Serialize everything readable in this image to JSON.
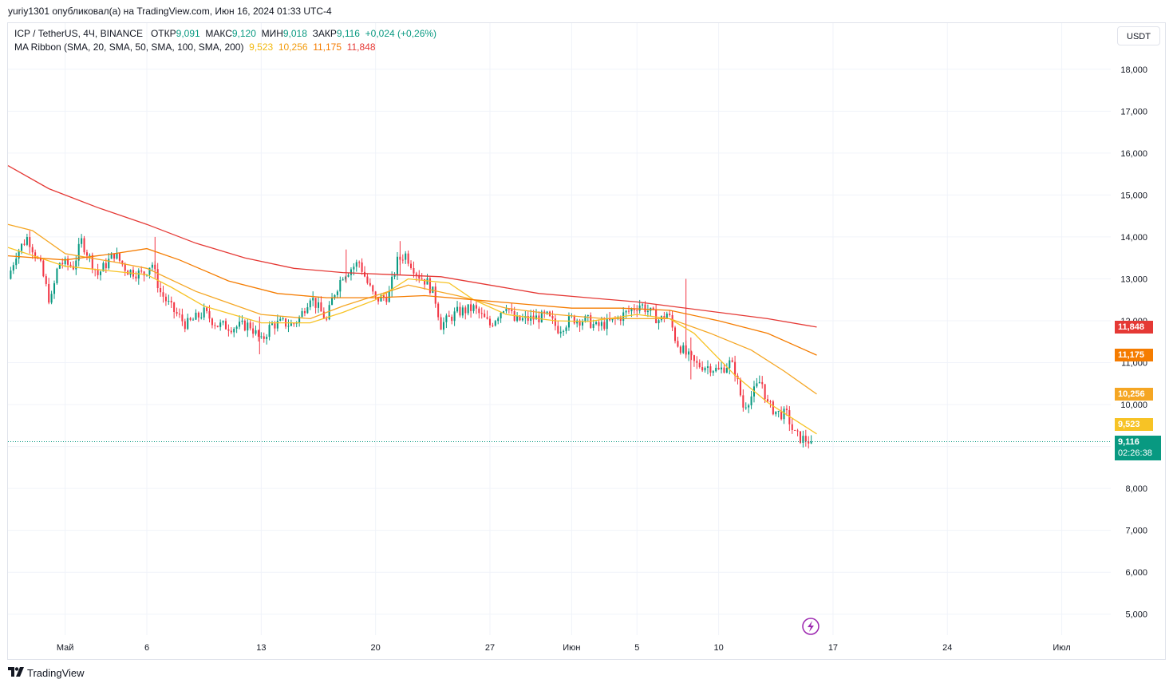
{
  "header": {
    "publisher": "yuriy1301 опубликовал(а) на TradingView.com, Июн 16, 2024 01:33 UTC-4"
  },
  "legend": {
    "symbol": "ICP / TetherUS, 4Ч, BINANCE",
    "open_label": "ОТКР",
    "open": "9,091",
    "high_label": "МАКС",
    "high": "9,120",
    "low_label": "МИН",
    "low": "9,018",
    "close_label": "ЗАКР",
    "close": "9,116",
    "change": "+0,024 (+0,26%)",
    "indicator": "MA Ribbon (SMA, 20, SMA, 50, SMA, 100, SMA, 200)",
    "ma20": "9,523",
    "ma50": "10,256",
    "ma100": "11,175",
    "ma200": "11,848"
  },
  "currency": "USDT",
  "footer": {
    "brand": "TradingView"
  },
  "colors": {
    "up": "#089981",
    "down": "#f23645",
    "ma20": "#f7c325",
    "ma50": "#f5a623",
    "ma100": "#f57c00",
    "ma200": "#e53935",
    "price_line": "#089981"
  },
  "chart_data": {
    "type": "candlestick",
    "ylim": [
      4.5,
      19.1
    ],
    "y_ticks": [
      "18,000",
      "17,000",
      "16,000",
      "15,000",
      "14,000",
      "13,000",
      "12,000",
      "11,000",
      "10,000",
      "9,000",
      "8,000",
      "7,000",
      "6,000",
      "5,000"
    ],
    "y_tick_values": [
      18,
      17,
      16,
      15,
      14,
      13,
      12,
      11,
      10,
      9,
      8,
      7,
      6,
      5
    ],
    "x_ticks": [
      {
        "label": "Май",
        "day": 0
      },
      {
        "label": "6",
        "day": 5
      },
      {
        "label": "13",
        "day": 12
      },
      {
        "label": "20",
        "day": 19
      },
      {
        "label": "27",
        "day": 26
      },
      {
        "label": "Июн",
        "day": 31
      },
      {
        "label": "5",
        "day": 35
      },
      {
        "label": "10",
        "day": 40
      },
      {
        "label": "17",
        "day": 47
      },
      {
        "label": "24",
        "day": 54
      },
      {
        "label": "Июл",
        "day": 61
      }
    ],
    "xlim_days": [
      -3.5,
      64.0
    ],
    "last_day": 45.7,
    "price_path": [
      [
        -3.5,
        13.0
      ],
      [
        -3.0,
        13.6
      ],
      [
        -2.3,
        14.0
      ],
      [
        -1.5,
        13.3
      ],
      [
        -0.9,
        12.4
      ],
      [
        -0.4,
        13.4
      ],
      [
        0.5,
        13.3
      ],
      [
        1.0,
        13.9
      ],
      [
        2.0,
        13.1
      ],
      [
        3.0,
        13.6
      ],
      [
        3.8,
        13.2
      ],
      [
        4.8,
        13.1
      ],
      [
        5.3,
        13.4
      ],
      [
        5.8,
        12.7
      ],
      [
        6.5,
        12.3
      ],
      [
        7.4,
        11.9
      ],
      [
        8.5,
        12.2
      ],
      [
        9.3,
        11.9
      ],
      [
        10.3,
        11.85
      ],
      [
        11.3,
        11.9
      ],
      [
        12.0,
        11.5
      ],
      [
        12.6,
        11.9
      ],
      [
        13.3,
        11.95
      ],
      [
        13.9,
        11.9
      ],
      [
        14.4,
        12.1
      ],
      [
        15.0,
        12.6
      ],
      [
        16.0,
        12.0
      ],
      [
        16.4,
        12.6
      ],
      [
        17.0,
        13.1
      ],
      [
        18.0,
        13.4
      ],
      [
        18.5,
        12.9
      ],
      [
        19.0,
        12.5
      ],
      [
        19.8,
        12.6
      ],
      [
        20.3,
        13.4
      ],
      [
        20.8,
        13.6
      ],
      [
        21.6,
        13.1
      ],
      [
        22.2,
        12.9
      ],
      [
        22.6,
        12.6
      ],
      [
        23.0,
        11.9
      ],
      [
        24.0,
        12.2
      ],
      [
        25.0,
        12.3
      ],
      [
        26.0,
        11.9
      ],
      [
        27.0,
        12.4
      ],
      [
        27.5,
        12.0
      ],
      [
        28.5,
        12.05
      ],
      [
        29.5,
        12.1
      ],
      [
        30.2,
        11.8
      ],
      [
        31.0,
        12.05
      ],
      [
        32.0,
        12.0
      ],
      [
        32.5,
        11.85
      ],
      [
        33.6,
        12.0
      ],
      [
        34.4,
        12.2
      ],
      [
        35.2,
        12.4
      ],
      [
        35.8,
        12.2
      ],
      [
        36.4,
        12.0
      ],
      [
        36.9,
        12.2
      ],
      [
        37.4,
        11.5
      ],
      [
        38.0,
        11.2
      ],
      [
        38.6,
        10.95
      ],
      [
        39.5,
        10.9
      ],
      [
        40.0,
        10.8
      ],
      [
        40.7,
        11.0
      ],
      [
        41.0,
        10.8
      ],
      [
        41.5,
        9.95
      ],
      [
        42.0,
        10.2
      ],
      [
        42.6,
        10.6
      ],
      [
        43.0,
        10.0
      ],
      [
        43.6,
        9.8
      ],
      [
        44.2,
        9.75
      ],
      [
        44.6,
        9.3
      ],
      [
        45.0,
        9.2
      ],
      [
        45.7,
        9.116
      ]
    ],
    "series": [
      {
        "name": "SMA 20",
        "value": "9,523",
        "points": [
          [
            -3.5,
            13.75
          ],
          [
            0.0,
            13.3
          ],
          [
            5.0,
            13.1
          ],
          [
            6.5,
            12.8
          ],
          [
            8.5,
            12.35
          ],
          [
            12.0,
            11.95
          ],
          [
            15.0,
            11.95
          ],
          [
            17.0,
            12.2
          ],
          [
            19.0,
            12.5
          ],
          [
            21.0,
            13.0
          ],
          [
            23.5,
            12.9
          ],
          [
            25.0,
            12.5
          ],
          [
            27.0,
            12.15
          ],
          [
            30.0,
            12.0
          ],
          [
            32.0,
            11.98
          ],
          [
            35.0,
            12.15
          ],
          [
            37.0,
            12.05
          ],
          [
            38.5,
            11.7
          ],
          [
            41.0,
            10.7
          ],
          [
            43.0,
            10.05
          ],
          [
            45.0,
            9.55
          ],
          [
            46.0,
            9.3
          ]
        ]
      },
      {
        "name": "SMA 50",
        "value": "10,256",
        "points": [
          [
            -3.5,
            14.3
          ],
          [
            -2.0,
            14.15
          ],
          [
            0.0,
            13.6
          ],
          [
            3.0,
            13.4
          ],
          [
            5.0,
            13.25
          ],
          [
            8.0,
            12.7
          ],
          [
            12.0,
            12.15
          ],
          [
            15.0,
            12.05
          ],
          [
            17.0,
            12.35
          ],
          [
            19.0,
            12.6
          ],
          [
            21.0,
            12.85
          ],
          [
            24.0,
            12.6
          ],
          [
            27.0,
            12.3
          ],
          [
            30.0,
            12.15
          ],
          [
            33.0,
            12.05
          ],
          [
            35.0,
            12.05
          ],
          [
            37.0,
            12.05
          ],
          [
            39.5,
            11.7
          ],
          [
            42.0,
            11.3
          ],
          [
            44.0,
            10.8
          ],
          [
            46.0,
            10.25
          ]
        ]
      },
      {
        "name": "SMA 100",
        "value": "11,175",
        "points": [
          [
            -3.5,
            13.55
          ],
          [
            0.0,
            13.45
          ],
          [
            3.0,
            13.6
          ],
          [
            5.0,
            13.72
          ],
          [
            7.0,
            13.45
          ],
          [
            10.0,
            12.95
          ],
          [
            13.0,
            12.65
          ],
          [
            16.0,
            12.55
          ],
          [
            19.0,
            12.55
          ],
          [
            22.0,
            12.6
          ],
          [
            25.0,
            12.5
          ],
          [
            28.0,
            12.4
          ],
          [
            31.0,
            12.3
          ],
          [
            34.0,
            12.3
          ],
          [
            37.0,
            12.25
          ],
          [
            40.0,
            12.0
          ],
          [
            43.0,
            11.7
          ],
          [
            46.0,
            11.18
          ]
        ]
      },
      {
        "name": "SMA 200",
        "value": "11,848",
        "points": [
          [
            -3.5,
            15.7
          ],
          [
            -1.0,
            15.15
          ],
          [
            2.0,
            14.7
          ],
          [
            5.0,
            14.3
          ],
          [
            8.0,
            13.85
          ],
          [
            11.0,
            13.5
          ],
          [
            14.0,
            13.25
          ],
          [
            17.0,
            13.15
          ],
          [
            20.0,
            13.1
          ],
          [
            23.0,
            13.05
          ],
          [
            26.0,
            12.85
          ],
          [
            29.0,
            12.65
          ],
          [
            32.0,
            12.55
          ],
          [
            35.0,
            12.45
          ],
          [
            37.0,
            12.35
          ],
          [
            40.0,
            12.2
          ],
          [
            43.0,
            12.05
          ],
          [
            46.0,
            11.85
          ]
        ]
      }
    ],
    "last_price": "9,116",
    "countdown": "02:26:38"
  }
}
